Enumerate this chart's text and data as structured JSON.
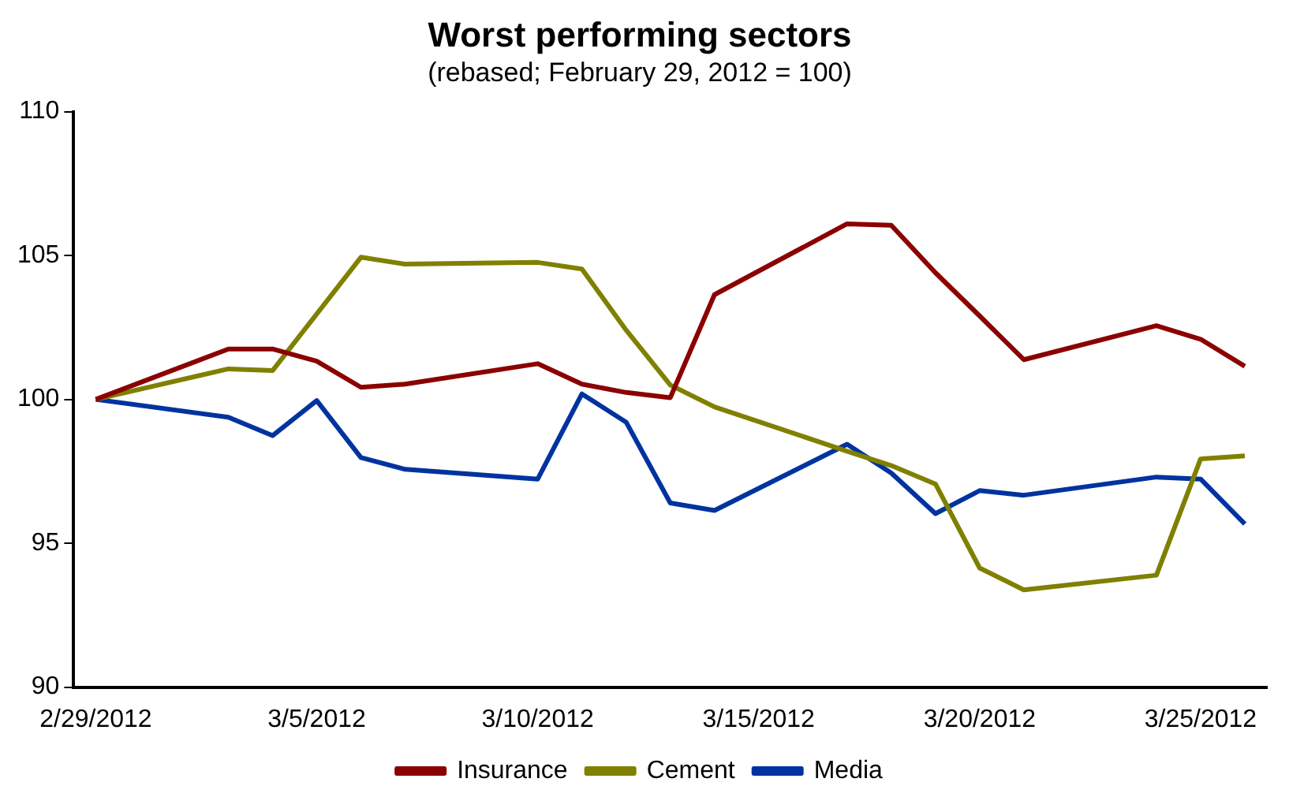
{
  "chart_data": {
    "type": "line",
    "title": "Worst performing sectors",
    "subtitle": "(rebased; February 29, 2012 = 100)",
    "series": [
      {
        "name": "Insurance",
        "color": "#8b0000",
        "x": [
          "2012-02-29",
          "2012-03-03",
          "2012-03-04",
          "2012-03-05",
          "2012-03-06",
          "2012-03-07",
          "2012-03-10",
          "2012-03-11",
          "2012-03-12",
          "2012-03-13",
          "2012-03-14",
          "2012-03-17",
          "2012-03-18",
          "2012-03-19",
          "2012-03-20",
          "2012-03-21",
          "2012-03-24",
          "2012-03-25",
          "2012-03-26"
        ],
        "values": [
          100,
          101.75,
          101.75,
          101.33,
          100.42,
          100.53,
          101.24,
          100.53,
          100.24,
          100.06,
          103.64,
          106.1,
          106.05,
          104.4,
          102.9,
          101.38,
          102.56,
          102.09,
          101.15
        ]
      },
      {
        "name": "Cement",
        "color": "#808000",
        "x": [
          "2012-02-29",
          "2012-03-03",
          "2012-03-04",
          "2012-03-06",
          "2012-03-07",
          "2012-03-10",
          "2012-03-11",
          "2012-03-12",
          "2012-03-13",
          "2012-03-14",
          "2012-03-17",
          "2012-03-18",
          "2012-03-19",
          "2012-03-20",
          "2012-03-21",
          "2012-03-24",
          "2012-03-25",
          "2012-03-26"
        ],
        "values": [
          100,
          101.06,
          101.0,
          104.94,
          104.7,
          104.76,
          104.53,
          102.41,
          100.5,
          99.74,
          98.2,
          97.7,
          97.06,
          94.14,
          93.38,
          93.89,
          97.93,
          98.04
        ]
      },
      {
        "name": "Media",
        "color": "#0033a0",
        "x": [
          "2012-02-29",
          "2012-03-03",
          "2012-03-04",
          "2012-03-05",
          "2012-03-06",
          "2012-03-07",
          "2012-03-10",
          "2012-03-11",
          "2012-03-12",
          "2012-03-13",
          "2012-03-14",
          "2012-03-17",
          "2012-03-18",
          "2012-03-19",
          "2012-03-20",
          "2012-03-21",
          "2012-03-24",
          "2012-03-25",
          "2012-03-26"
        ],
        "values": [
          100,
          99.38,
          98.74,
          99.96,
          97.98,
          97.57,
          97.23,
          100.19,
          99.21,
          96.4,
          96.14,
          98.44,
          97.44,
          96.03,
          96.83,
          96.67,
          97.3,
          97.23,
          95.67
        ]
      }
    ],
    "xlim": [
      "2012-02-28T12:00",
      "2012-03-26T12:00"
    ],
    "xticks": [
      {
        "value": "2012-02-29",
        "label": "2/29/2012"
      },
      {
        "value": "2012-03-05",
        "label": "3/5/2012"
      },
      {
        "value": "2012-03-10",
        "label": "3/10/2012"
      },
      {
        "value": "2012-03-15",
        "label": "3/15/2012"
      },
      {
        "value": "2012-03-20",
        "label": "3/20/2012"
      },
      {
        "value": "2012-03-25",
        "label": "3/25/2012"
      }
    ],
    "ylim": [
      90,
      110
    ],
    "yticks": [
      90,
      95,
      100,
      105,
      110
    ],
    "grid": false,
    "legend": "bottom",
    "marker": "none",
    "line_style": "solid"
  }
}
